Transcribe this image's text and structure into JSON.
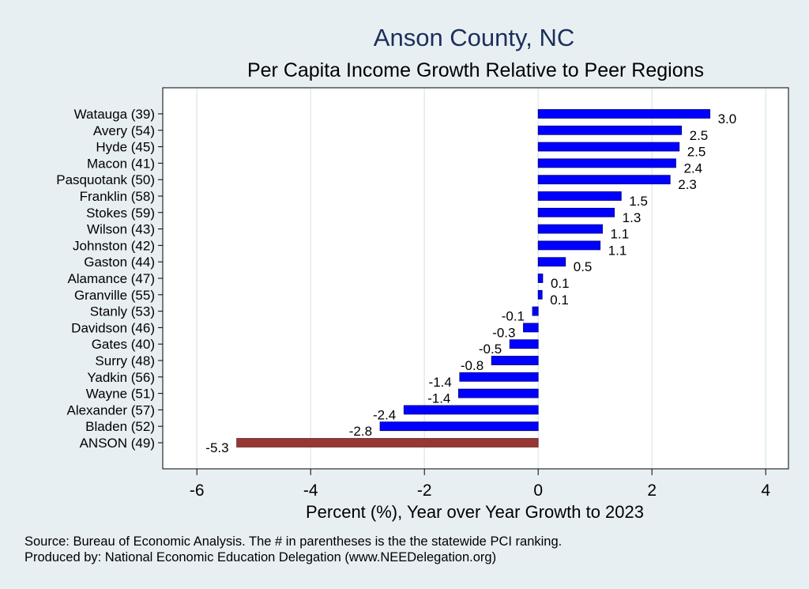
{
  "chart_data": {
    "type": "bar",
    "orientation": "horizontal",
    "title": "Anson County, NC",
    "subtitle": "Per Capita Income Growth Relative to Peer Regions",
    "xlabel": "Percent (%), Year over Year Growth to 2023",
    "ylabel": "",
    "xlim": [
      -6.6,
      4.4
    ],
    "xticks": [
      -6,
      -4,
      -2,
      0,
      2,
      4
    ],
    "xtick_labels": [
      "-6",
      "-4",
      "-2",
      "0",
      "2",
      "4"
    ],
    "grid": true,
    "categories": [
      "Watauga (39)",
      "Avery (54)",
      "Hyde (45)",
      "Macon (41)",
      "Pasquotank (50)",
      "Franklin (58)",
      "Stokes (59)",
      "Wilson (43)",
      "Johnston (42)",
      "Gaston (44)",
      "Alamance (47)",
      "Granville (55)",
      "Stanly (53)",
      "Davidson (46)",
      "Gates (40)",
      "Surry (48)",
      "Yadkin (56)",
      "Wayne (51)",
      "Alexander (57)",
      "Bladen (52)",
      "ANSON (49)"
    ],
    "values": [
      3.02,
      2.52,
      2.48,
      2.42,
      2.32,
      1.46,
      1.34,
      1.13,
      1.09,
      0.48,
      0.08,
      0.07,
      -0.1,
      -0.26,
      -0.5,
      -0.82,
      -1.38,
      -1.4,
      -2.36,
      -2.78,
      -5.3
    ],
    "value_labels": [
      "3.0",
      "2.5",
      "2.5",
      "2.4",
      "2.3",
      "1.5",
      "1.3",
      "1.1",
      "1.1",
      "0.5",
      "0.1",
      "0.1",
      "-0.1",
      "-0.3",
      "-0.5",
      "-0.8",
      "-1.4",
      "-1.4",
      "-2.4",
      "-2.8",
      "-5.3"
    ],
    "highlight_category": "ANSON (49)",
    "colors": {
      "bar": "#0000ff",
      "highlight": "#953735",
      "bar_edge": "#000080",
      "grid": "#e1eaee",
      "plot_bg": "#ffffff",
      "page_bg": "#e8eff3",
      "title": "#1c2f5a"
    }
  },
  "notes": [
    "Source: Bureau of Economic Analysis. The # in parentheses is the the statewide PCI ranking.",
    "Produced by: National Economic Education Delegation (www.NEEDelegation.org)"
  ]
}
